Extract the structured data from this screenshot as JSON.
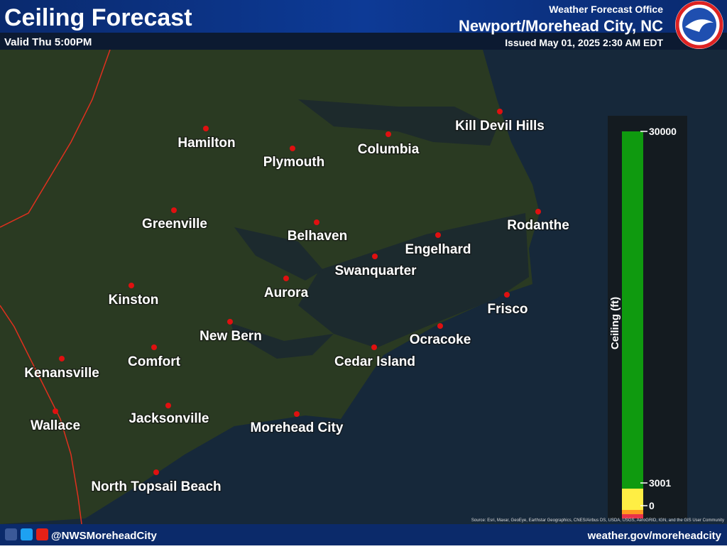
{
  "header": {
    "title": "Ceiling Forecast",
    "valid": "Valid Thu 5:00PM",
    "office_label": "Weather Forecast Office",
    "office": "Newport/Morehead City, NC",
    "issued": "Issued May 01, 2025 2:30 AM EDT"
  },
  "cities": [
    "Hamilton",
    "Plymouth",
    "Columbia",
    "Kill Devil Hills",
    "Greenville",
    "Belhaven",
    "Rodanthe",
    "Engelhard",
    "Swanquarter",
    "Aurora",
    "Kinston",
    "Frisco",
    "New Bern",
    "Ocracoke",
    "Comfort",
    "Cedar Island",
    "Kenansville",
    "Jacksonville",
    "Wallace",
    "Morehead City",
    "North Topsail Beach"
  ],
  "legend": {
    "label": "Ceiling (ft)",
    "ticks": [
      30000,
      3001,
      0
    ]
  },
  "attribution": "Source: Esri, Maxar, GeoEye, Earthstar Geographics, CNES/Airbus DS, USDA, USGS, AeroGRID, IGN, and the GIS User Community",
  "footer": {
    "handle": "@NWSMoreheadCity",
    "url": "weather.gov/moreheadcity"
  }
}
